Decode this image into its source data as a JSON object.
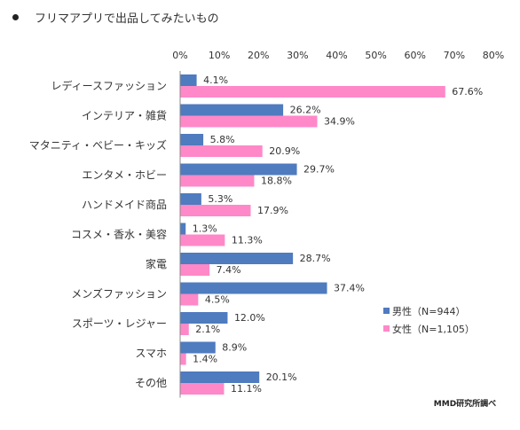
{
  "title": "フリマアプリで出品してみたいもの",
  "source": "MMD研究所調べ",
  "colors": {
    "male": "#4f7bbf",
    "female": "#ff88c8"
  },
  "chart_data": {
    "type": "bar",
    "orientation": "horizontal",
    "title": "フリマアプリで出品してみたいもの",
    "categories": [
      "レディースファッション",
      "インテリア・雑貨",
      "マタニティ・ベビー・キッズ",
      "エンタメ・ホビー",
      "ハンドメイド商品",
      "コスメ・香水・美容",
      "家電",
      "メンズファッション",
      "スポーツ・レジャー",
      "スマホ",
      "その他"
    ],
    "series": [
      {
        "name": "男性（N=944）",
        "values": [
          4.1,
          26.2,
          5.8,
          29.7,
          5.3,
          1.3,
          28.7,
          37.4,
          12.0,
          8.9,
          20.1
        ]
      },
      {
        "name": "女性（N=1,105）",
        "values": [
          67.6,
          34.9,
          20.9,
          18.8,
          17.9,
          11.3,
          7.4,
          4.5,
          2.1,
          1.4,
          11.1
        ]
      }
    ],
    "xlim": [
      0,
      80
    ],
    "xticks": [
      "0%",
      "10%",
      "20%",
      "30%",
      "40%",
      "50%",
      "60%",
      "70%",
      "80%"
    ],
    "value_suffix": "%",
    "grid": false,
    "legend": "bottom-right"
  }
}
